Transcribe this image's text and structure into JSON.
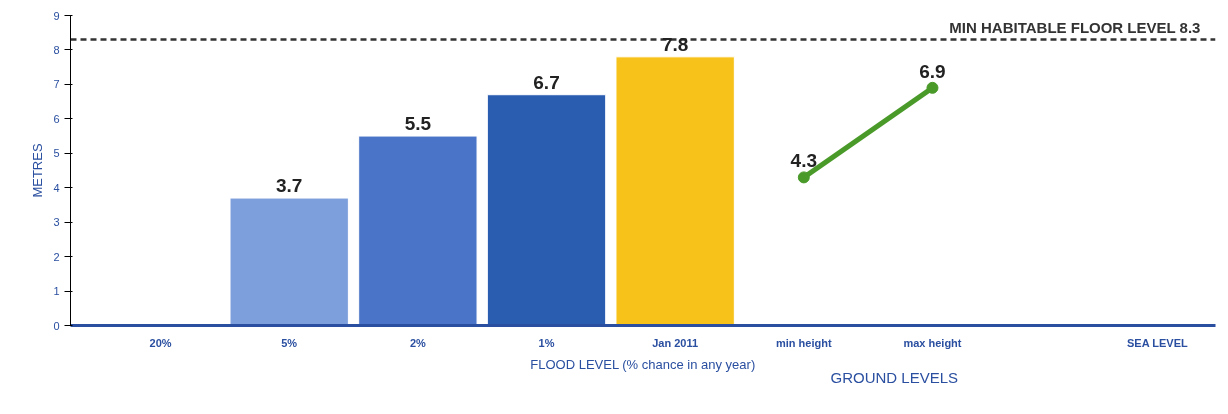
{
  "chart_data": {
    "type": "bar",
    "ylabel": "METRES",
    "xlabel": "FLOOD LEVEL (% chance in any year)",
    "categories": [
      "20%",
      "5%",
      "2%",
      "1%",
      "Jan 2011",
      "min height",
      "max height"
    ],
    "series": [
      {
        "colors": [
          null,
          "#7d9fdc",
          "#4a74c8",
          "#2a5cb0",
          "#f7c21a",
          null,
          null
        ],
        "values": [
          null,
          3.7,
          5.5,
          6.7,
          7.8,
          null,
          null
        ],
        "value_labels": [
          null,
          "3.7",
          "5.5",
          "6.7",
          "7.8",
          null,
          null
        ]
      },
      {
        "type": "line",
        "color": "#4a9a2a",
        "marker": "circle",
        "values": [
          null,
          null,
          null,
          null,
          null,
          4.3,
          6.9
        ],
        "value_labels": [
          null,
          null,
          null,
          null,
          null,
          "4.3",
          "6.9"
        ]
      }
    ],
    "ylim": [
      0,
      9
    ],
    "yticks": [
      0,
      1,
      2,
      3,
      4,
      5,
      6,
      7,
      8,
      9
    ],
    "grid": false,
    "ref_lines": [
      {
        "axis": "y",
        "value": 8.3,
        "label": "MIN HABITABLE FLOOR LEVEL   8.3",
        "color": "#333333",
        "line_style": "dashed"
      }
    ],
    "annotations": [
      "GROUND LEVELS",
      "SEA LEVEL"
    ]
  }
}
